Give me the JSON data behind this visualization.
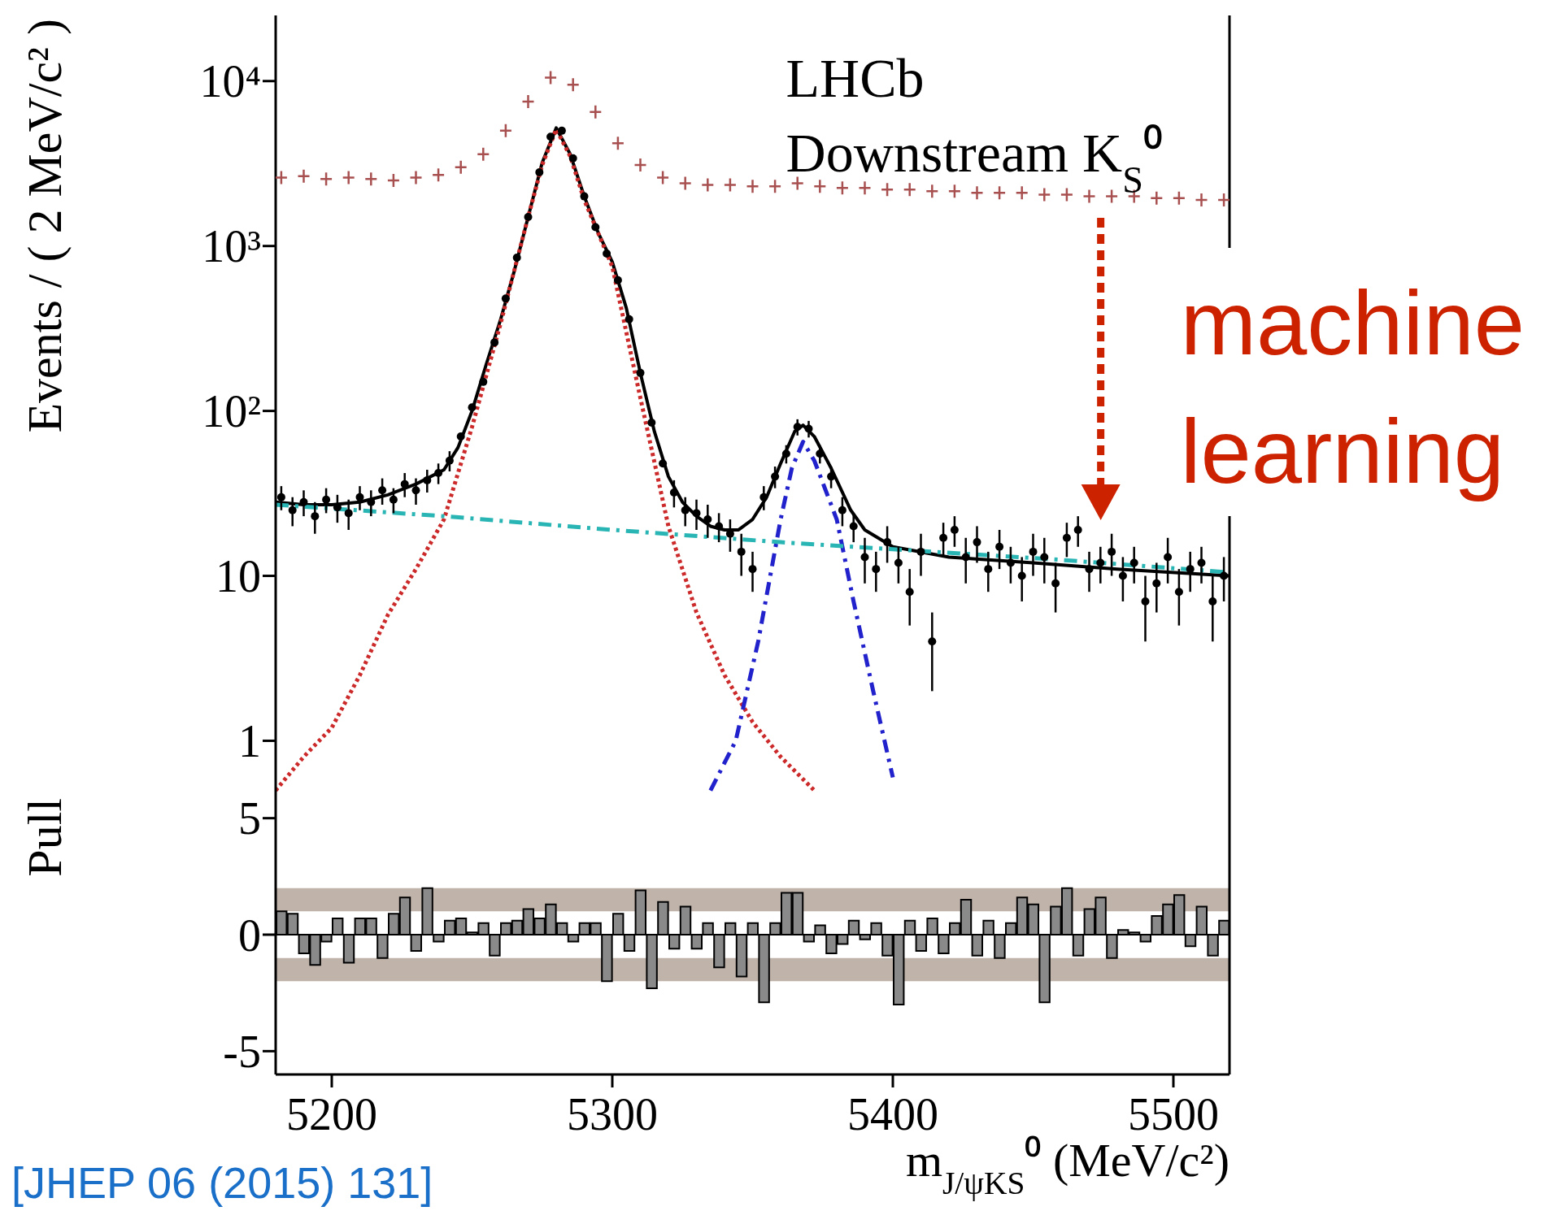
{
  "chart_data": [
    {
      "type": "line",
      "ylabel": "Events / ( 2 MeV/c² )",
      "xlim": [
        5180,
        5520
      ],
      "xticks": [
        5200,
        5300,
        5400,
        5500
      ],
      "ylim": [
        0.47,
        25000
      ],
      "yticks": [
        1,
        10,
        {
          "value": 100,
          "label": "10²"
        },
        {
          "value": 1000,
          "label": "10³"
        },
        {
          "value": 10000,
          "label": "10⁴"
        }
      ],
      "log": true,
      "tick_labels": "y",
      "annotations": [
        "LHCb",
        "Downstream K$_{S}$⁰",
        {
          "text": "machine learning"
        }
      ],
      "series": [
        {
          "type": "scatter",
          "marker": "cross",
          "color": "#a85050",
          "x": [
            5182,
            5190,
            5198,
            5206,
            5214,
            5222,
            5230,
            5238,
            5246,
            5254,
            5262,
            5270,
            5278,
            5286,
            5294,
            5302,
            5310,
            5318,
            5326,
            5334,
            5342,
            5350,
            5358,
            5366,
            5374,
            5382,
            5390,
            5398,
            5406,
            5414,
            5422,
            5430,
            5438,
            5446,
            5454,
            5462,
            5470,
            5478,
            5486,
            5494,
            5502,
            5510,
            5518
          ],
          "values": [
            2600,
            2650,
            2550,
            2600,
            2550,
            2500,
            2600,
            2700,
            3000,
            3600,
            5000,
            7500,
            10500,
            9500,
            6500,
            4200,
            3100,
            2600,
            2400,
            2350,
            2350,
            2300,
            2300,
            2400,
            2300,
            2250,
            2250,
            2200,
            2200,
            2150,
            2150,
            2100,
            2100,
            2100,
            2050,
            2050,
            2000,
            2000,
            2000,
            1950,
            1950,
            1900,
            1900
          ]
        },
        {
          "type": "scatter",
          "marker": "circle",
          "color": "#000000",
          "x": [
            5182,
            5186,
            5190,
            5194,
            5198,
            5202,
            5206,
            5210,
            5214,
            5218,
            5222,
            5226,
            5230,
            5234,
            5238,
            5242,
            5246,
            5250,
            5254,
            5258,
            5262,
            5266,
            5270,
            5274,
            5278,
            5282,
            5286,
            5290,
            5294,
            5298,
            5302,
            5306,
            5310,
            5314,
            5318,
            5322,
            5326,
            5330,
            5334,
            5338,
            5342,
            5346,
            5350,
            5354,
            5358,
            5362,
            5366,
            5370,
            5374,
            5378,
            5382,
            5386,
            5390,
            5394,
            5398,
            5402,
            5406,
            5410,
            5414,
            5418,
            5422,
            5426,
            5430,
            5434,
            5438,
            5442,
            5446,
            5450,
            5454,
            5458,
            5462,
            5466,
            5470,
            5474,
            5478,
            5482,
            5486,
            5490,
            5494,
            5498,
            5502,
            5506,
            5510,
            5514,
            5518
          ],
          "values": [
            30,
            25,
            28,
            23,
            29,
            26,
            24,
            30,
            28,
            33,
            29,
            36,
            33,
            38,
            42,
            50,
            70,
            105,
            150,
            260,
            480,
            850,
            1500,
            2800,
            4600,
            5000,
            3400,
            2000,
            1300,
            900,
            620,
            360,
            170,
            85,
            48,
            32,
            25,
            24,
            22,
            20,
            18,
            14,
            11,
            30,
            40,
            55,
            80,
            78,
            55,
            40,
            25,
            20,
            13,
            11,
            16,
            12,
            8,
            14,
            4,
            17,
            19,
            13,
            16,
            11,
            15,
            12,
            10,
            14,
            13,
            9,
            17,
            19,
            11,
            12,
            14,
            10,
            12,
            7,
            9,
            13,
            8,
            11,
            12,
            7,
            10
          ],
          "errors": [
            5,
            5,
            5,
            5,
            5,
            5,
            5,
            5,
            5,
            6,
            5,
            6,
            6,
            6,
            6,
            7,
            null,
            null,
            null,
            null,
            null,
            null,
            null,
            null,
            null,
            null,
            null,
            null,
            null,
            null,
            null,
            null,
            null,
            null,
            null,
            6,
            5,
            5,
            5,
            4,
            4,
            4,
            3,
            5,
            6,
            7,
            9,
            9,
            7,
            6,
            5,
            4,
            4,
            3,
            4,
            3,
            3,
            4,
            2,
            4,
            4,
            4,
            4,
            3,
            4,
            3,
            3,
            4,
            4,
            3,
            4,
            4,
            3,
            3,
            4,
            3,
            3,
            3,
            3,
            4,
            3,
            3,
            3,
            3,
            3
          ]
        },
        {
          "type": "line",
          "line_style": "solid",
          "color": "#000000",
          "x": [
            5180,
            5190,
            5200,
            5210,
            5220,
            5230,
            5240,
            5245,
            5250,
            5255,
            5260,
            5265,
            5270,
            5275,
            5280,
            5285,
            5290,
            5295,
            5300,
            5305,
            5310,
            5315,
            5320,
            5325,
            5330,
            5335,
            5340,
            5345,
            5350,
            5355,
            5360,
            5365,
            5368,
            5372,
            5378,
            5385,
            5390,
            5400,
            5420,
            5450,
            5480,
            5520
          ],
          "values": [
            28,
            27,
            27,
            28,
            31,
            36,
            44,
            60,
            100,
            190,
            350,
            700,
            1500,
            3200,
            5200,
            3600,
            2000,
            1200,
            800,
            420,
            170,
            75,
            40,
            28,
            23,
            20,
            19,
            19,
            22,
            30,
            48,
            75,
            82,
            70,
            45,
            25,
            19,
            15,
            13,
            12,
            11,
            10
          ]
        },
        {
          "type": "line",
          "line_style": "dotted",
          "color": "#cc2a2a",
          "x": [
            5180,
            5190,
            5200,
            5210,
            5220,
            5230,
            5240,
            5250,
            5260,
            5270,
            5275,
            5280,
            5285,
            5290,
            5300,
            5310,
            5320,
            5330,
            5340,
            5350,
            5360,
            5372
          ],
          "values": [
            0.5,
            0.8,
            1.2,
            2.5,
            5.8,
            11,
            22,
            80,
            330,
            1500,
            3100,
            5100,
            3500,
            1900,
            750,
            120,
            20,
            6,
            2.5,
            1.3,
            0.8,
            0.5
          ]
        },
        {
          "type": "line",
          "line_style": "dashed",
          "color": "#2222cc",
          "x": [
            5335,
            5344,
            5352,
            5360,
            5364,
            5368,
            5372,
            5380,
            5386,
            5393,
            5400
          ],
          "values": [
            0.5,
            1,
            4,
            22,
            45,
            65,
            50,
            22,
            7,
            2,
            0.6
          ]
        },
        {
          "type": "line",
          "line_style": "dashed",
          "color": "#2ab5b5",
          "x": [
            5180,
            5240,
            5300,
            5360,
            5400,
            5460,
            5520
          ],
          "values": [
            27,
            23,
            19,
            16,
            14.5,
            12.5,
            10.5
          ]
        }
      ]
    },
    {
      "type": "histogram",
      "ylabel": "Pull",
      "xlabel": "m$_{J/ψK}$$_{S}$⁰ (MeV/c²)",
      "xlim": [
        5180,
        5520
      ],
      "xticks": [
        5200,
        5300,
        5400,
        5500
      ],
      "ylim": [
        -6,
        6
      ],
      "yticks": [
        -5,
        0,
        5
      ],
      "color": "#8a8a8a",
      "bins": [
        5180,
        5184,
        5188,
        5192,
        5196,
        5200,
        5204,
        5208,
        5212,
        5216,
        5220,
        5224,
        5228,
        5232,
        5236,
        5240,
        5244,
        5248,
        5252,
        5256,
        5260,
        5264,
        5268,
        5272,
        5276,
        5280,
        5284,
        5288,
        5292,
        5296,
        5300,
        5304,
        5308,
        5312,
        5316,
        5320,
        5324,
        5328,
        5332,
        5336,
        5340,
        5344,
        5348,
        5352,
        5356,
        5360,
        5364,
        5368,
        5372,
        5376,
        5380,
        5384,
        5388,
        5392,
        5396,
        5400,
        5404,
        5408,
        5412,
        5416,
        5420,
        5424,
        5428,
        5432,
        5436,
        5440,
        5444,
        5448,
        5452,
        5456,
        5460,
        5464,
        5468,
        5472,
        5476,
        5480,
        5484,
        5488,
        5492,
        5496,
        5500,
        5504,
        5508,
        5512,
        5516,
        5520
      ],
      "values": [
        1,
        0.9,
        -0.8,
        -1.3,
        -0.3,
        0.7,
        -1.2,
        0.7,
        0.7,
        -1,
        0.9,
        1.6,
        -0.7,
        2,
        -0.3,
        0.6,
        0.7,
        0.1,
        0.5,
        -0.9,
        0.5,
        0.6,
        1.1,
        0.7,
        1.3,
        0.5,
        -0.3,
        0.5,
        0.5,
        -2,
        0.9,
        -0.7,
        1.9,
        -2.3,
        1.4,
        -0.6,
        1.2,
        -0.6,
        0.5,
        -1.4,
        0.5,
        -1.8,
        0.5,
        -2.9,
        0.5,
        1.8,
        1.8,
        -0.3,
        0.4,
        -0.8,
        -0.4,
        0.6,
        -0.2,
        0.5,
        -0.9,
        -3,
        0.6,
        -0.7,
        0.7,
        -0.8,
        0.5,
        1.5,
        -0.9,
        0.6,
        -1,
        0.5,
        1.6,
        1.3,
        -2.9,
        1.2,
        2,
        -0.9,
        1.1,
        1.6,
        -1,
        0.2,
        0.1,
        -0.3,
        0.8,
        1.3,
        1.7,
        -0.5,
        1.2,
        -0.9,
        0.6
      ],
      "bands": [
        {
          "axis": "y",
          "from": 1,
          "to": 2,
          "color": "#bfb3aa"
        },
        {
          "axis": "y",
          "from": -2,
          "to": -1,
          "color": "#bfb3aa"
        }
      ],
      "annotations": [
        "[JHEP 06 (2015) 131]"
      ]
    }
  ]
}
